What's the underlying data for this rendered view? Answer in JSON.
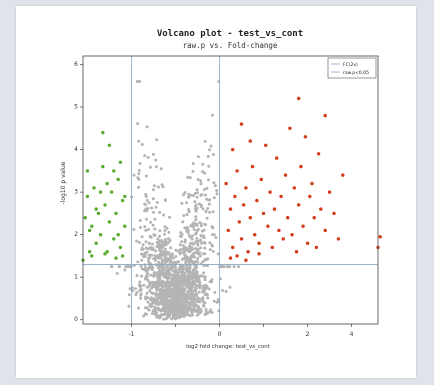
{
  "chart_data": {
    "type": "scatter",
    "title": "Volcano plot - test_vs_cont",
    "subtitle": "raw.p vs. Fold-change",
    "xlabel": "log2 fold change: test_vs_cont",
    "ylabel": "-log10 p value",
    "xlim": [
      -2.1,
      4.6
    ],
    "ylim": [
      -0.1,
      6.2
    ],
    "xticks": [
      -1,
      0,
      1,
      2,
      3,
      4
    ],
    "xtick_labels": [
      "-1",
      "",
      "0",
      "",
      "2",
      "4"
    ],
    "yticks": [
      0,
      1,
      2,
      3,
      4,
      5,
      6
    ],
    "ytick_labels": [
      "0",
      "1",
      "2",
      "3",
      "4",
      "5",
      "6"
    ],
    "grid": false,
    "legend_position": "top-right",
    "legend": [
      "FC(2x)",
      "raw.p<0.05"
    ],
    "thresholds": {
      "fold_change_lines": [
        -1,
        1
      ],
      "p_value_line": 1.3
    },
    "colors": {
      "up": "#d43a1a",
      "down": "#5aab2e",
      "nonsignificant": "#b4b4b4",
      "threshold_line": "#8aa6c8"
    },
    "series": [
      {
        "name": "up",
        "points": [
          [
            1.15,
            3.2
          ],
          [
            1.2,
            2.1
          ],
          [
            1.25,
            2.6
          ],
          [
            1.3,
            1.7
          ],
          [
            1.35,
            2.9
          ],
          [
            1.4,
            3.5
          ],
          [
            1.45,
            2.3
          ],
          [
            1.5,
            1.9
          ],
          [
            1.55,
            2.7
          ],
          [
            1.6,
            3.1
          ],
          [
            1.65,
            1.6
          ],
          [
            1.7,
            2.4
          ],
          [
            1.75,
            3.6
          ],
          [
            1.8,
            2.0
          ],
          [
            1.85,
            2.8
          ],
          [
            1.9,
            1.8
          ],
          [
            1.95,
            3.3
          ],
          [
            2.0,
            2.5
          ],
          [
            2.05,
            4.1
          ],
          [
            2.1,
            2.2
          ],
          [
            2.15,
            3.0
          ],
          [
            2.2,
            1.7
          ],
          [
            2.25,
            2.6
          ],
          [
            2.3,
            3.8
          ],
          [
            2.35,
            2.1
          ],
          [
            2.4,
            2.9
          ],
          [
            2.45,
            1.9
          ],
          [
            2.5,
            3.4
          ],
          [
            2.55,
            2.4
          ],
          [
            2.6,
            4.5
          ],
          [
            2.65,
            2.0
          ],
          [
            2.7,
            3.1
          ],
          [
            2.75,
            1.6
          ],
          [
            2.8,
            2.7
          ],
          [
            2.85,
            3.6
          ],
          [
            2.9,
            2.2
          ],
          [
            2.95,
            4.3
          ],
          [
            3.0,
            1.8
          ],
          [
            3.05,
            2.9
          ],
          [
            3.1,
            3.2
          ],
          [
            3.15,
            2.4
          ],
          [
            3.2,
            1.7
          ],
          [
            3.25,
            3.9
          ],
          [
            3.3,
            2.6
          ],
          [
            3.4,
            2.1
          ],
          [
            3.5,
            3.0
          ],
          [
            3.6,
            2.5
          ],
          [
            3.7,
            1.9
          ],
          [
            3.8,
            3.4
          ],
          [
            4.6,
            1.7
          ],
          [
            4.65,
            1.95
          ],
          [
            1.3,
            4.0
          ],
          [
            1.5,
            4.6
          ],
          [
            1.7,
            4.2
          ],
          [
            2.8,
            5.2
          ],
          [
            3.4,
            4.8
          ],
          [
            1.25,
            1.45
          ],
          [
            1.4,
            1.5
          ],
          [
            1.6,
            1.4
          ],
          [
            1.9,
            1.55
          ]
        ]
      },
      {
        "name": "down",
        "points": [
          [
            -1.15,
            2.2
          ],
          [
            -1.2,
            2.8
          ],
          [
            -1.25,
            1.7
          ],
          [
            -1.3,
            3.3
          ],
          [
            -1.35,
            2.5
          ],
          [
            -1.4,
            1.9
          ],
          [
            -1.45,
            3.0
          ],
          [
            -1.5,
            2.3
          ],
          [
            -1.55,
            1.6
          ],
          [
            -1.6,
            2.7
          ],
          [
            -1.65,
            3.6
          ],
          [
            -1.7,
            2.0
          ],
          [
            -1.75,
            2.5
          ],
          [
            -1.8,
            1.8
          ],
          [
            -1.85,
            3.1
          ],
          [
            -1.9,
            2.2
          ],
          [
            -1.95,
            1.6
          ],
          [
            -2.0,
            2.9
          ],
          [
            -2.05,
            2.4
          ],
          [
            -1.2,
            1.5
          ],
          [
            -1.35,
            1.45
          ],
          [
            -1.6,
            1.55
          ],
          [
            -1.9,
            1.5
          ],
          [
            -2.1,
            1.4
          ],
          [
            -1.25,
            3.7
          ],
          [
            -1.5,
            4.1
          ],
          [
            -1.65,
            4.4
          ],
          [
            -2.0,
            3.5
          ],
          [
            -1.3,
            2.0
          ],
          [
            -1.8,
            2.6
          ],
          [
            -1.4,
            3.5
          ],
          [
            -1.55,
            3.2
          ],
          [
            -1.15,
            2.9
          ],
          [
            -1.7,
            3.0
          ],
          [
            -1.95,
            2.1
          ]
        ]
      }
    ]
  }
}
